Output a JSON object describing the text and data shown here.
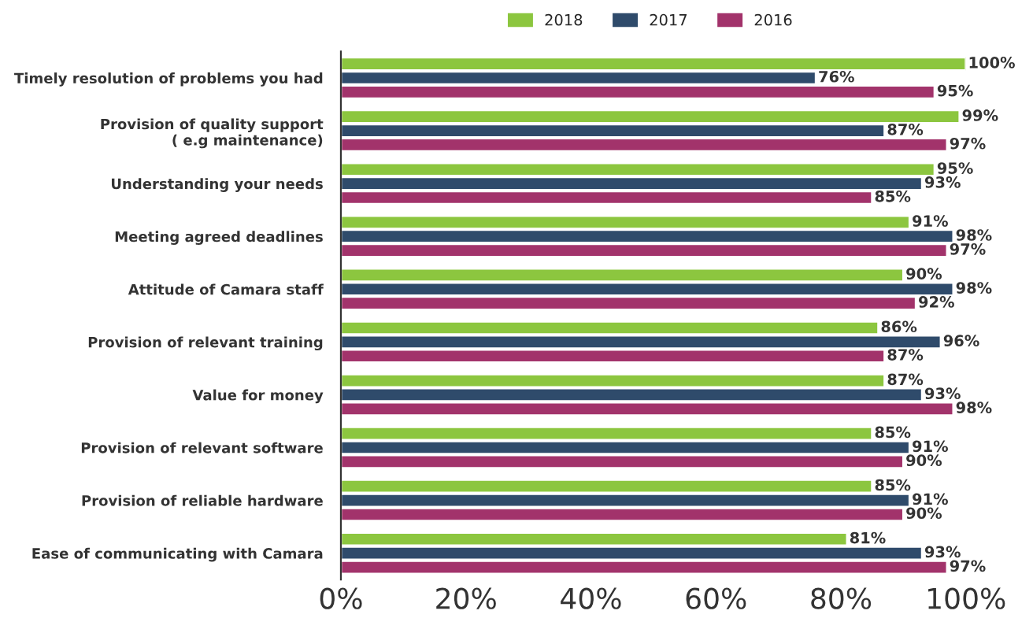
{
  "chart_data": {
    "type": "bar",
    "orientation": "horizontal",
    "categories": [
      "Timely resolution of problems you had",
      "Provision of quality support\n( e.g maintenance)",
      "Understanding your needs",
      "Meeting agreed deadlines",
      "Attitude of Camara staff",
      "Provision of relevant training",
      "Value for money",
      "Provision of relevant software",
      "Provision of reliable hardware",
      "Ease of communicating with Camara"
    ],
    "series": [
      {
        "name": "2018",
        "color": "#8cc63f",
        "values": [
          100,
          99,
          95,
          91,
          90,
          86,
          87,
          85,
          85,
          81
        ],
        "value_labels": [
          "100%",
          "99%",
          "95%",
          "91%",
          "90%",
          "86%",
          "87%",
          "85%",
          "85%",
          "81%"
        ]
      },
      {
        "name": "2017",
        "color": "#2f4b6b",
        "values": [
          76,
          87,
          93,
          98,
          98,
          96,
          93,
          91,
          91,
          93
        ],
        "value_labels": [
          "76%",
          "87%",
          "93%",
          "98%",
          "98%",
          "96%",
          "93%",
          "91%",
          "91%",
          "93%"
        ]
      },
      {
        "name": "2016",
        "color": "#a2336b",
        "values": [
          95,
          97,
          85,
          97,
          92,
          87,
          98,
          90,
          90,
          97
        ],
        "value_labels": [
          "95%",
          "97%",
          "85%",
          "97%",
          "92%",
          "87%",
          "98%",
          "90%",
          "90%",
          "97%"
        ]
      }
    ],
    "xlim": [
      0,
      100
    ],
    "xticks": [
      {
        "value": 0,
        "label": "0%"
      },
      {
        "value": 20,
        "label": "20%"
      },
      {
        "value": 40,
        "label": "40%"
      },
      {
        "value": 60,
        "label": "60%"
      },
      {
        "value": 80,
        "label": "80%"
      },
      {
        "value": 100,
        "label": "100%"
      }
    ],
    "legend": "top",
    "grid": false
  }
}
